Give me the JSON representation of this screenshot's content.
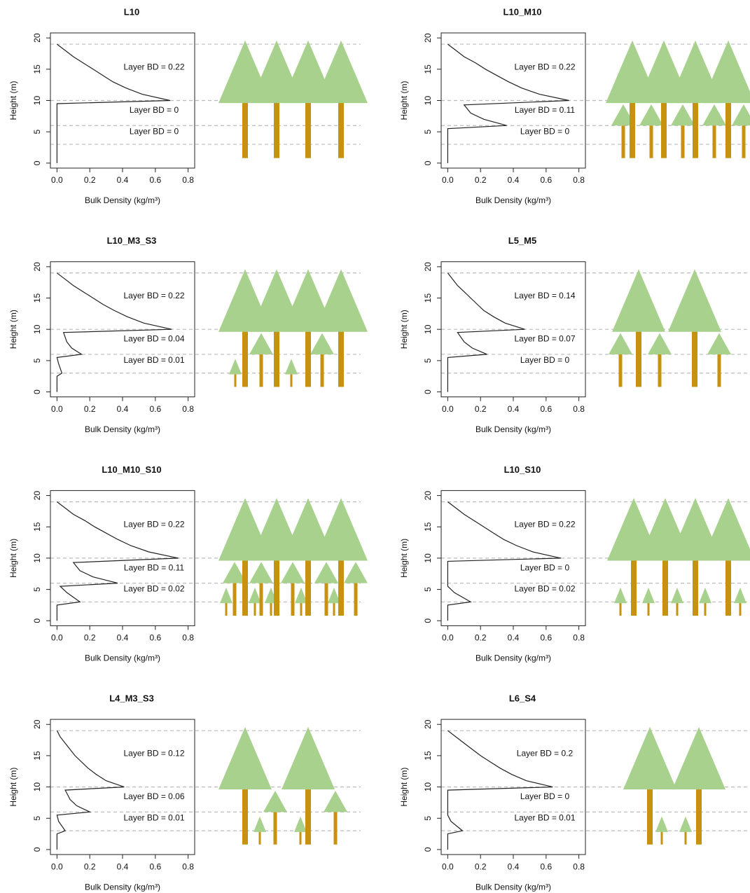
{
  "chart_data": [
    {
      "type": "line",
      "title": "L10",
      "xlabel": "Bulk Density (kg/m³)",
      "ylabel": "Height (m)",
      "color": "#222222",
      "x": [
        0,
        0,
        0.69,
        0.52,
        0.42,
        0.34,
        0.28,
        0.22,
        0.16,
        0.1,
        0.05,
        0
      ],
      "y": [
        0,
        9.5,
        10,
        11,
        12,
        13,
        14,
        15,
        16,
        17,
        18,
        19
      ],
      "xlim": [
        -0.04,
        0.84
      ],
      "ylim": [
        -0.8,
        20.8
      ],
      "xticks": [
        {
          "value": 0,
          "label": "0.0"
        },
        0.2,
        0.4,
        0.6,
        0.8
      ],
      "yticks": [
        0,
        5,
        10,
        15,
        20
      ],
      "hlines": [
        19,
        10,
        6,
        3
      ],
      "annotations": [
        "Layer BD = 0.22",
        "Layer BD = 0",
        "Layer BD = 0"
      ]
    },
    {
      "type": "line",
      "title": "L10_M10",
      "xlabel": "Bulk Density (kg/m³)",
      "ylabel": "Height (m)",
      "color": "#222222",
      "x": [
        0,
        0,
        0.36,
        0.22,
        0.14,
        0.1,
        0.74,
        0.56,
        0.45,
        0.37,
        0.3,
        0.23,
        0.17,
        0.1,
        0.05,
        0
      ],
      "y": [
        0,
        5.5,
        6,
        7,
        8,
        9.3,
        10,
        11,
        12,
        13,
        14,
        15,
        16,
        17,
        18,
        19
      ],
      "xlim": [
        -0.04,
        0.84
      ],
      "ylim": [
        -0.8,
        20.8
      ],
      "xticks": [
        {
          "value": 0,
          "label": "0.0"
        },
        0.2,
        0.4,
        0.6,
        0.8
      ],
      "yticks": [
        0,
        5,
        10,
        15,
        20
      ],
      "hlines": [
        19,
        10,
        6,
        3
      ],
      "annotations": [
        "Layer BD = 0.22",
        "Layer BD = 0.11",
        "Layer BD = 0"
      ]
    },
    {
      "type": "line",
      "title": "L10_M3_S3",
      "xlabel": "Bulk Density (kg/m³)",
      "ylabel": "Height (m)",
      "color": "#222222",
      "x": [
        0,
        0,
        0.03,
        0.01,
        0,
        0.15,
        0.09,
        0.06,
        0.04,
        0.7,
        0.53,
        0.43,
        0.35,
        0.28,
        0.22,
        0.16,
        0.1,
        0.05,
        0
      ],
      "y": [
        0,
        2.5,
        3,
        4.5,
        5.5,
        6,
        7,
        8,
        9.5,
        10,
        11,
        12,
        13,
        14,
        15,
        16,
        17,
        18,
        19
      ],
      "xlim": [
        -0.04,
        0.84
      ],
      "ylim": [
        -0.8,
        20.8
      ],
      "xticks": [
        {
          "value": 0,
          "label": "0.0"
        },
        0.2,
        0.4,
        0.6,
        0.8
      ],
      "yticks": [
        0,
        5,
        10,
        15,
        20
      ],
      "hlines": [
        19,
        10,
        6,
        3
      ],
      "annotations": [
        "Layer BD = 0.22",
        "Layer BD = 0.04",
        "Layer BD = 0.01"
      ]
    },
    {
      "type": "line",
      "title": "L5_M5",
      "xlabel": "Bulk Density (kg/m³)",
      "ylabel": "Height (m)",
      "color": "#222222",
      "x": [
        0,
        0,
        0.24,
        0.15,
        0.1,
        0.06,
        0.47,
        0.35,
        0.28,
        0.22,
        0.18,
        0.14,
        0.1,
        0.06,
        0.03,
        0
      ],
      "y": [
        0,
        5.5,
        6,
        7,
        8,
        9.5,
        10,
        11,
        12,
        13,
        14,
        15,
        16,
        17,
        18,
        19
      ],
      "xlim": [
        -0.04,
        0.84
      ],
      "ylim": [
        -0.8,
        20.8
      ],
      "xticks": [
        {
          "value": 0,
          "label": "0.0"
        },
        0.2,
        0.4,
        0.6,
        0.8
      ],
      "yticks": [
        0,
        5,
        10,
        15,
        20
      ],
      "hlines": [
        19,
        10,
        6,
        3
      ],
      "annotations": [
        "Layer BD = 0.14",
        "Layer BD = 0.07",
        "Layer BD = 0"
      ]
    },
    {
      "type": "line",
      "title": "L10_M10_S10",
      "xlabel": "Bulk Density (kg/m³)",
      "ylabel": "Height (m)",
      "color": "#222222",
      "x": [
        0,
        0,
        0.14,
        0.06,
        0.02,
        0.37,
        0.22,
        0.14,
        0.1,
        0.74,
        0.56,
        0.45,
        0.37,
        0.3,
        0.23,
        0.17,
        0.1,
        0.05,
        0
      ],
      "y": [
        0,
        2.5,
        3,
        4.5,
        5.5,
        6,
        7,
        8,
        9.3,
        10,
        11,
        12,
        13,
        14,
        15,
        16,
        17,
        18,
        19
      ],
      "xlim": [
        -0.04,
        0.84
      ],
      "ylim": [
        -0.8,
        20.8
      ],
      "xticks": [
        {
          "value": 0,
          "label": "0.0"
        },
        0.2,
        0.4,
        0.6,
        0.8
      ],
      "yticks": [
        0,
        5,
        10,
        15,
        20
      ],
      "hlines": [
        19,
        10,
        6,
        3
      ],
      "annotations": [
        "Layer BD = 0.22",
        "Layer BD = 0.11",
        "Layer BD = 0.02"
      ]
    },
    {
      "type": "line",
      "title": "L10_S10",
      "xlabel": "Bulk Density (kg/m³)",
      "ylabel": "Height (m)",
      "color": "#222222",
      "x": [
        0,
        0,
        0.14,
        0.04,
        0,
        0,
        0.69,
        0.52,
        0.42,
        0.34,
        0.28,
        0.22,
        0.16,
        0.1,
        0.05,
        0
      ],
      "y": [
        0,
        2.5,
        3,
        4.5,
        5.5,
        9.5,
        10,
        11,
        12,
        13,
        14,
        15,
        16,
        17,
        18,
        19
      ],
      "xlim": [
        -0.04,
        0.84
      ],
      "ylim": [
        -0.8,
        20.8
      ],
      "xticks": [
        {
          "value": 0,
          "label": "0.0"
        },
        0.2,
        0.4,
        0.6,
        0.8
      ],
      "yticks": [
        0,
        5,
        10,
        15,
        20
      ],
      "hlines": [
        19,
        10,
        6,
        3
      ],
      "annotations": [
        "Layer BD = 0.22",
        "Layer BD = 0",
        "Layer BD = 0.02"
      ]
    },
    {
      "type": "line",
      "title": "L4_M3_S3",
      "xlabel": "Bulk Density (kg/m³)",
      "ylabel": "Height (m)",
      "color": "#222222",
      "x": [
        0,
        0,
        0.05,
        0.01,
        0,
        0.2,
        0.12,
        0.08,
        0.05,
        0.41,
        0.3,
        0.24,
        0.19,
        0.15,
        0.11,
        0.08,
        0.05,
        0.02,
        0
      ],
      "y": [
        0,
        2.5,
        3,
        4.5,
        5.5,
        6,
        7,
        8,
        9.5,
        10,
        11,
        12,
        13,
        14,
        15,
        16,
        17,
        18,
        19
      ],
      "xlim": [
        -0.04,
        0.84
      ],
      "ylim": [
        -0.8,
        20.8
      ],
      "xticks": [
        {
          "value": 0,
          "label": "0.0"
        },
        0.2,
        0.4,
        0.6,
        0.8
      ],
      "yticks": [
        0,
        5,
        10,
        15,
        20
      ],
      "hlines": [
        19,
        10,
        6,
        3
      ],
      "annotations": [
        "Layer BD = 0.12",
        "Layer BD = 0.06",
        "Layer BD = 0.01"
      ]
    },
    {
      "type": "line",
      "title": "L6_S4",
      "xlabel": "Bulk Density (kg/m³)",
      "ylabel": "Height (m)",
      "color": "#222222",
      "x": [
        0,
        0,
        0.09,
        0.02,
        0,
        0,
        0.64,
        0.48,
        0.39,
        0.32,
        0.26,
        0.2,
        0.15,
        0.1,
        0.05,
        0
      ],
      "y": [
        0,
        2.5,
        3,
        4.5,
        5.5,
        9.5,
        10,
        11,
        12,
        13,
        14,
        15,
        16,
        17,
        18,
        19
      ],
      "xlim": [
        -0.04,
        0.84
      ],
      "ylim": [
        -0.8,
        20.8
      ],
      "xticks": [
        {
          "value": 0,
          "label": "0.0"
        },
        0.2,
        0.4,
        0.6,
        0.8
      ],
      "yticks": [
        0,
        5,
        10,
        15,
        20
      ],
      "hlines": [
        19,
        10,
        6,
        3
      ],
      "annotations": [
        "Layer BD = 0.2",
        "Layer BD = 0",
        "Layer BD = 0.01"
      ]
    }
  ]
}
